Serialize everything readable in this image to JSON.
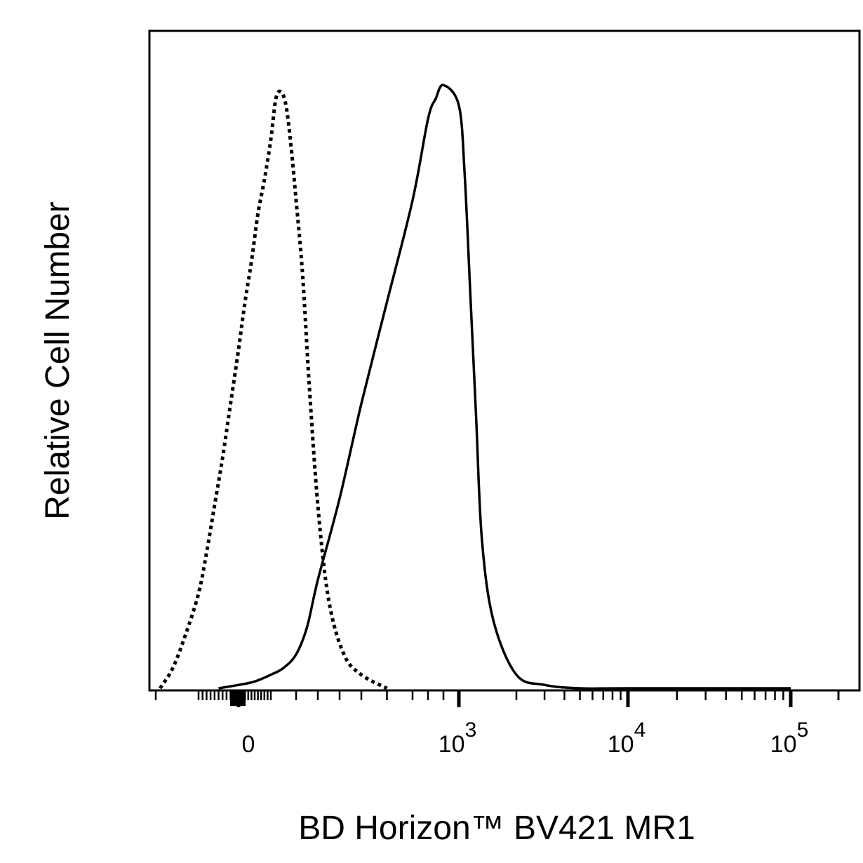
{
  "chart_data": {
    "type": "line",
    "title": "",
    "xlabel": "BD Horizon™ BV421 MR1",
    "ylabel": "Relative Cell Number",
    "x_scale": "biexponential",
    "x_ticks": [
      {
        "value": 0,
        "base": "0",
        "exponent": ""
      },
      {
        "value": 1000,
        "base": "10",
        "exponent": "3"
      },
      {
        "value": 10000,
        "base": "10",
        "exponent": "4"
      },
      {
        "value": 100000,
        "base": "10",
        "exponent": "5"
      }
    ],
    "ylim": [
      0,
      100
    ],
    "grid": false,
    "legend": "none",
    "series": [
      {
        "style": "dotted",
        "color": "#000000",
        "x": [
          -190,
          -160,
          -130,
          -100,
          -80,
          -60,
          -40,
          -20,
          0,
          20,
          40,
          60,
          80,
          100,
          120,
          140,
          160,
          180,
          200,
          230,
          260,
          300,
          350,
          420,
          500,
          600
        ],
        "y": [
          0,
          3,
          8,
          14,
          20,
          27,
          34,
          42,
          50,
          57,
          63,
          70,
          75,
          81,
          87,
          88,
          86,
          80,
          72,
          61,
          45,
          27,
          13,
          5,
          2,
          0
        ]
      },
      {
        "style": "solid",
        "color": "#000000",
        "x": [
          -50,
          0,
          50,
          100,
          150,
          200,
          250,
          300,
          400,
          500,
          600,
          700,
          800,
          850,
          900,
          1000,
          1100,
          1200,
          1300,
          1400,
          1600,
          2000,
          3000,
          5000,
          10000,
          100000
        ],
        "y": [
          0,
          0.5,
          1,
          2,
          3,
          5,
          9,
          16,
          28,
          42,
          57,
          72,
          84,
          87,
          89,
          86,
          76,
          58,
          40,
          22,
          10,
          2,
          0.5,
          0,
          0,
          0
        ]
      }
    ]
  }
}
